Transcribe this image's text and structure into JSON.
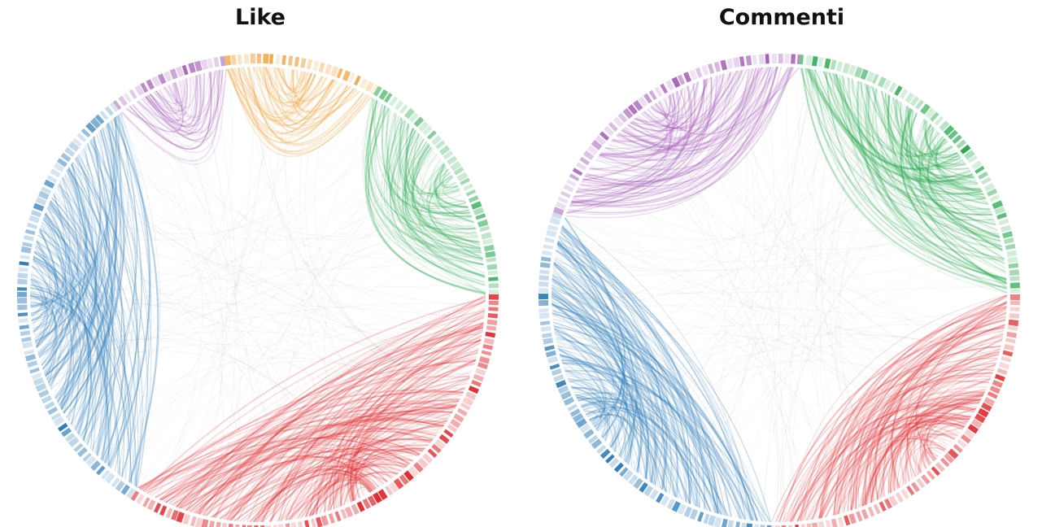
{
  "colors": {
    "blue": "#2b7bb9",
    "purple": "#a45cb8",
    "orange": "#ef9a2e",
    "green": "#22a84a",
    "red": "#e2262b",
    "background": "#ffffff",
    "ring_separator": "#ffffff"
  },
  "panels": [
    {
      "title": "Like",
      "segments": [
        {
          "color": "green",
          "start": -60,
          "end": 0
        },
        {
          "color": "red",
          "start": 0,
          "end": 122
        },
        {
          "color": "blue",
          "start": 122,
          "end": 233
        },
        {
          "color": "purple",
          "start": 233,
          "end": 262
        },
        {
          "color": "orange",
          "start": 262,
          "end": 300
        }
      ]
    },
    {
      "title": "Commenti",
      "segments": [
        {
          "color": "green",
          "start": -85,
          "end": 0
        },
        {
          "color": "red",
          "start": 0,
          "end": 92
        },
        {
          "color": "blue",
          "start": 92,
          "end": 200
        },
        {
          "color": "purple",
          "start": 200,
          "end": 275
        }
      ]
    }
  ]
}
